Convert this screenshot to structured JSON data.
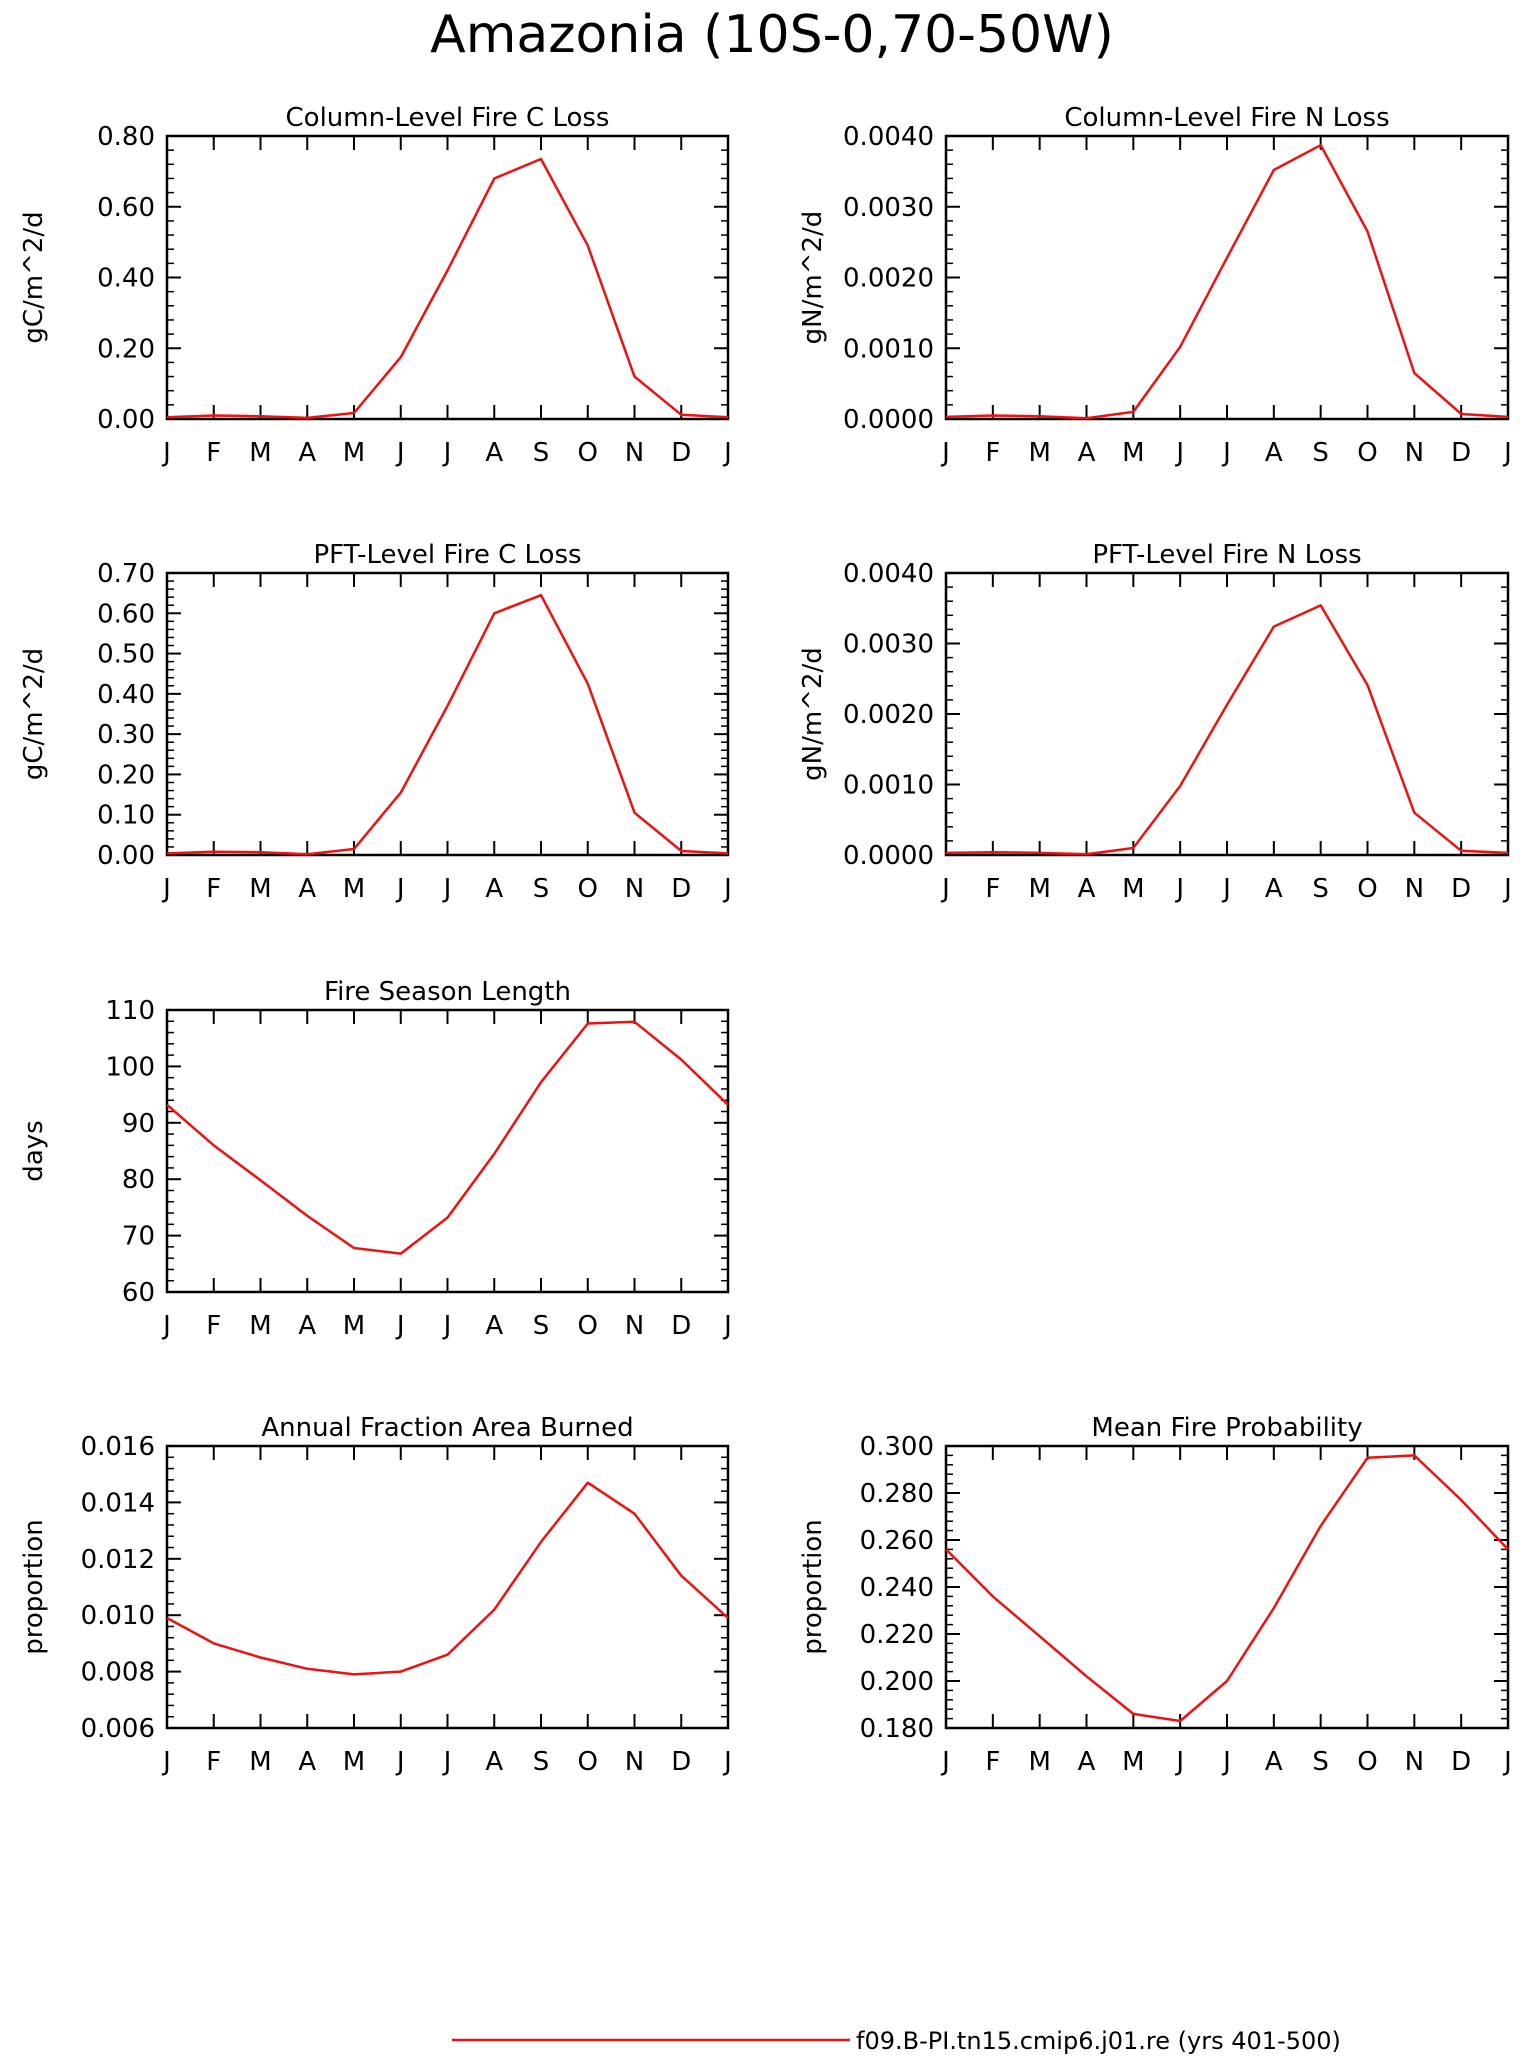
{
  "figure": {
    "title": "Amazonia (10S-0,70-50W)",
    "legend": {
      "label": "f09.B-PI.tn15.cmip6.j01.re (yrs 401-500)",
      "color": "#ee1111"
    }
  },
  "chart_data": [
    {
      "type": "line",
      "title": "Column-Level Fire C Loss",
      "ylabel": "gC/m^2/d",
      "xlabel": "",
      "categories": [
        "J",
        "F",
        "M",
        "A",
        "M",
        "J",
        "J",
        "A",
        "S",
        "O",
        "N",
        "D",
        "J"
      ],
      "ylim": [
        0.0,
        0.8
      ],
      "yticks": [
        0.0,
        0.2,
        0.4,
        0.6,
        0.8
      ],
      "ytick_labels": [
        "0.00",
        "0.20",
        "0.40",
        "0.60",
        "0.80"
      ],
      "series": [
        {
          "color": "#ee1111",
          "values": [
            0.005,
            0.01,
            0.008,
            0.003,
            0.017,
            0.175,
            0.42,
            0.68,
            0.735,
            0.49,
            0.12,
            0.012,
            0.005
          ]
        }
      ]
    },
    {
      "type": "line",
      "title": "Column-Level Fire N Loss",
      "ylabel": "gN/m^2/d",
      "xlabel": "",
      "categories": [
        "J",
        "F",
        "M",
        "A",
        "M",
        "J",
        "J",
        "A",
        "S",
        "O",
        "N",
        "D",
        "J"
      ],
      "ylim": [
        0.0,
        0.004
      ],
      "yticks": [
        0.0,
        0.001,
        0.002,
        0.003,
        0.004
      ],
      "ytick_labels": [
        "0.0000",
        "0.0010",
        "0.0020",
        "0.0030",
        "0.0040"
      ],
      "series": [
        {
          "color": "#ee1111",
          "values": [
            3e-05,
            5e-05,
            4e-05,
            1e-05,
            0.0001,
            0.00102,
            0.00228,
            0.00352,
            0.00387,
            0.00265,
            0.00065,
            7e-05,
            3e-05
          ]
        }
      ]
    },
    {
      "type": "line",
      "title": "PFT-Level Fire C Loss",
      "ylabel": "gC/m^2/d",
      "xlabel": "",
      "categories": [
        "J",
        "F",
        "M",
        "A",
        "M",
        "J",
        "J",
        "A",
        "S",
        "O",
        "N",
        "D",
        "J"
      ],
      "ylim": [
        0.0,
        0.7
      ],
      "yticks": [
        0.0,
        0.1,
        0.2,
        0.3,
        0.4,
        0.5,
        0.6,
        0.7
      ],
      "ytick_labels": [
        "0.00",
        "0.10",
        "0.20",
        "0.30",
        "0.40",
        "0.50",
        "0.60",
        "0.70"
      ],
      "series": [
        {
          "color": "#ee1111",
          "values": [
            0.004,
            0.008,
            0.007,
            0.002,
            0.015,
            0.155,
            0.37,
            0.6,
            0.645,
            0.425,
            0.105,
            0.01,
            0.004
          ]
        }
      ]
    },
    {
      "type": "line",
      "title": "PFT-Level Fire N Loss",
      "ylabel": "gN/m^2/d",
      "xlabel": "",
      "categories": [
        "J",
        "F",
        "M",
        "A",
        "M",
        "J",
        "J",
        "A",
        "S",
        "O",
        "N",
        "D",
        "J"
      ],
      "ylim": [
        0.0,
        0.004
      ],
      "yticks": [
        0.0,
        0.001,
        0.002,
        0.003,
        0.004
      ],
      "ytick_labels": [
        "0.0000",
        "0.0010",
        "0.0020",
        "0.0030",
        "0.0040"
      ],
      "series": [
        {
          "color": "#ee1111",
          "values": [
            3e-05,
            4e-05,
            3e-05,
            1e-05,
            0.0001,
            0.00098,
            0.00213,
            0.00324,
            0.00354,
            0.00241,
            0.0006,
            6e-05,
            3e-05
          ]
        }
      ]
    },
    {
      "type": "line",
      "title": "Fire Season Length",
      "ylabel": "days",
      "xlabel": "",
      "categories": [
        "J",
        "F",
        "M",
        "A",
        "M",
        "J",
        "J",
        "A",
        "S",
        "O",
        "N",
        "D",
        "J"
      ],
      "ylim": [
        60,
        110
      ],
      "yticks": [
        60,
        70,
        80,
        90,
        100,
        110
      ],
      "ytick_labels": [
        "60",
        "70",
        "80",
        "90",
        "100",
        "110"
      ],
      "series": [
        {
          "color": "#ee1111",
          "values": [
            93.2,
            86.0,
            79.8,
            73.5,
            67.8,
            66.8,
            73.2,
            84.5,
            97.2,
            107.6,
            107.9,
            101.2,
            93.2
          ]
        }
      ]
    },
    {
      "type": "line",
      "title": "Annual Fraction Area Burned",
      "ylabel": "proportion",
      "xlabel": "",
      "categories": [
        "J",
        "F",
        "M",
        "A",
        "M",
        "J",
        "J",
        "A",
        "S",
        "O",
        "N",
        "D",
        "J"
      ],
      "ylim": [
        0.006,
        0.016
      ],
      "yticks": [
        0.006,
        0.008,
        0.01,
        0.012,
        0.014,
        0.016
      ],
      "ytick_labels": [
        "0.006",
        "0.008",
        "0.010",
        "0.012",
        "0.014",
        "0.016"
      ],
      "series": [
        {
          "color": "#ee1111",
          "values": [
            0.0099,
            0.009,
            0.0085,
            0.0081,
            0.0079,
            0.008,
            0.0086,
            0.0102,
            0.0126,
            0.0147,
            0.0136,
            0.0114,
            0.0099
          ]
        }
      ]
    },
    {
      "type": "line",
      "title": "Mean Fire Probability",
      "ylabel": "proportion",
      "xlabel": "",
      "categories": [
        "J",
        "F",
        "M",
        "A",
        "M",
        "J",
        "J",
        "A",
        "S",
        "O",
        "N",
        "D",
        "J"
      ],
      "ylim": [
        0.18,
        0.3
      ],
      "yticks": [
        0.18,
        0.2,
        0.22,
        0.24,
        0.26,
        0.28,
        0.3
      ],
      "ytick_labels": [
        "0.180",
        "0.200",
        "0.220",
        "0.240",
        "0.260",
        "0.280",
        "0.300"
      ],
      "series": [
        {
          "color": "#ee1111",
          "values": [
            0.256,
            0.236,
            0.219,
            0.202,
            0.186,
            0.183,
            0.2,
            0.231,
            0.266,
            0.295,
            0.296,
            0.277,
            0.256
          ]
        }
      ]
    }
  ]
}
